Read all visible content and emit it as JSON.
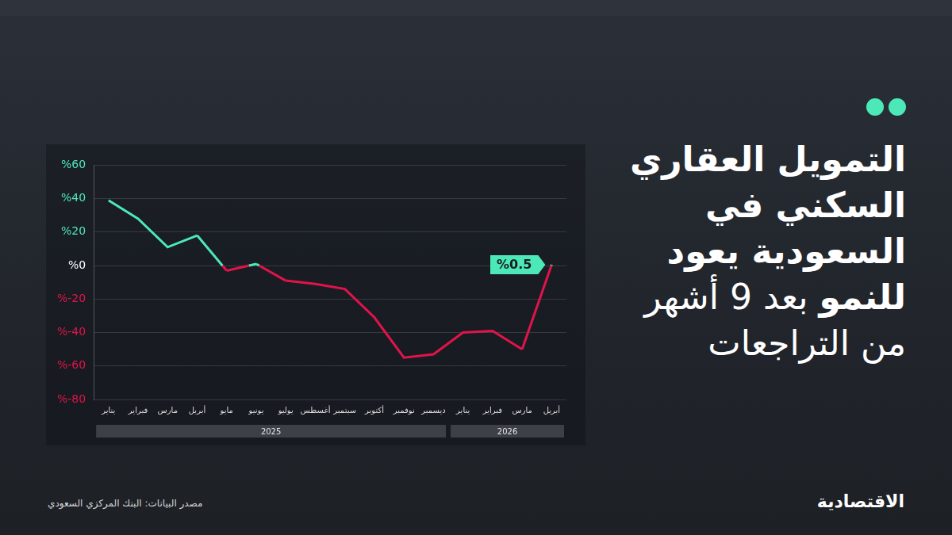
{
  "chart_data": {
    "type": "line",
    "title": "التمويل العقاري السكني في السعودية يعود للنمو",
    "subtitle": "بعد 9 أشهر من التراجعات",
    "source": "مصدر البيانات: البنك المركزي السعودي",
    "brand": "الاقتصادية",
    "categories": [
      "يناير",
      "فبراير",
      "مارس",
      "أبريل",
      "مايو",
      "يونيو",
      "يوليو",
      "أغسطس",
      "سبتمبر",
      "أكتوبر",
      "نوفمبر",
      "ديسمبر",
      "يناير",
      "فبراير",
      "مارس",
      "أبريل"
    ],
    "category_groups": [
      "2025",
      "2025",
      "2025",
      "2025",
      "2025",
      "2025",
      "2025",
      "2025",
      "2025",
      "2025",
      "2025",
      "2025",
      "2026",
      "2026",
      "2026",
      "2026"
    ],
    "values": [
      39,
      28,
      11,
      18,
      -3,
      1,
      -9,
      -11,
      -14,
      -31,
      -55,
      -53,
      -40,
      -39,
      -50,
      0.5
    ],
    "value_labels": [
      null,
      null,
      null,
      null,
      null,
      null,
      null,
      null,
      null,
      null,
      null,
      null,
      null,
      null,
      null,
      "%0.5"
    ],
    "colors": [
      "#4de8b8",
      "#4de8b8",
      "#4de8b8",
      "#4de8b8",
      "#e0144a",
      "#4de8b8",
      "#e0144a",
      "#e0144a",
      "#e0144a",
      "#e0144a",
      "#e0144a",
      "#e0144a",
      "#e0144a",
      "#e0144a",
      "#e0144a",
      "#4de8b8"
    ],
    "ylim": [
      -80,
      60
    ],
    "yticks": [
      {
        "value": -80,
        "label": "%-80"
      },
      {
        "value": -60,
        "label": "%-60"
      },
      {
        "value": -40,
        "label": "%-40"
      },
      {
        "value": -20,
        "label": "%-20"
      },
      {
        "value": 0,
        "label": "%0"
      },
      {
        "value": 20,
        "label": "%20"
      },
      {
        "value": 40,
        "label": "%40"
      },
      {
        "value": 60,
        "label": "%60"
      }
    ],
    "grid": true
  }
}
